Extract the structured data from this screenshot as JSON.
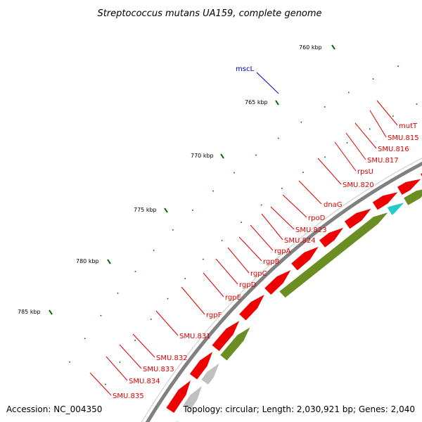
{
  "title": "Streptococcus mutans UA159, complete genome",
  "footer": {
    "accession": "Accession: NC_004350",
    "info": "Topology: circular; Length: 2,030,921 bp; Genes: 2,040"
  },
  "colors": {
    "backbone": "#808080",
    "cds": "#ee0000",
    "olive": "#6b8e23",
    "gray": "#c0c0c0",
    "cyan": "#22cccc",
    "pink": "#ee2299",
    "orange": "#ff9900",
    "steel": "#4682b4",
    "green": "#33cc33",
    "blue": "#0000ee",
    "tick": "#006400",
    "label_red": "#e00000",
    "label_blue": "#0000cc"
  },
  "ticks": [
    "760 kbp",
    "765 kbp",
    "770 kbp",
    "775 kbp",
    "780 kbp",
    "785 kbp"
  ],
  "gene_labels": [
    {
      "text": "mscL",
      "color": "blue"
    },
    {
      "text": "mutT",
      "color": "red"
    },
    {
      "text": "SMU.815",
      "color": "red"
    },
    {
      "text": "SMU.816",
      "color": "red"
    },
    {
      "text": "SMU.817",
      "color": "red"
    },
    {
      "text": "rpsU",
      "color": "red"
    },
    {
      "text": "SMU.820",
      "color": "red"
    },
    {
      "text": "dnaG",
      "color": "red"
    },
    {
      "text": "rpoD",
      "color": "red"
    },
    {
      "text": "SMU.823",
      "color": "red"
    },
    {
      "text": "SMU.824",
      "color": "red"
    },
    {
      "text": "rgpA",
      "color": "red"
    },
    {
      "text": "rgpB",
      "color": "red"
    },
    {
      "text": "rgpC",
      "color": "red"
    },
    {
      "text": "rgpD",
      "color": "red"
    },
    {
      "text": "rgpE",
      "color": "red"
    },
    {
      "text": "rgpF",
      "color": "red"
    },
    {
      "text": "SMU.831",
      "color": "red"
    },
    {
      "text": "SMU.832",
      "color": "red"
    },
    {
      "text": "SMU.833",
      "color": "red"
    },
    {
      "text": "SMU.834",
      "color": "red"
    },
    {
      "text": "SMU.835",
      "color": "red"
    }
  ]
}
